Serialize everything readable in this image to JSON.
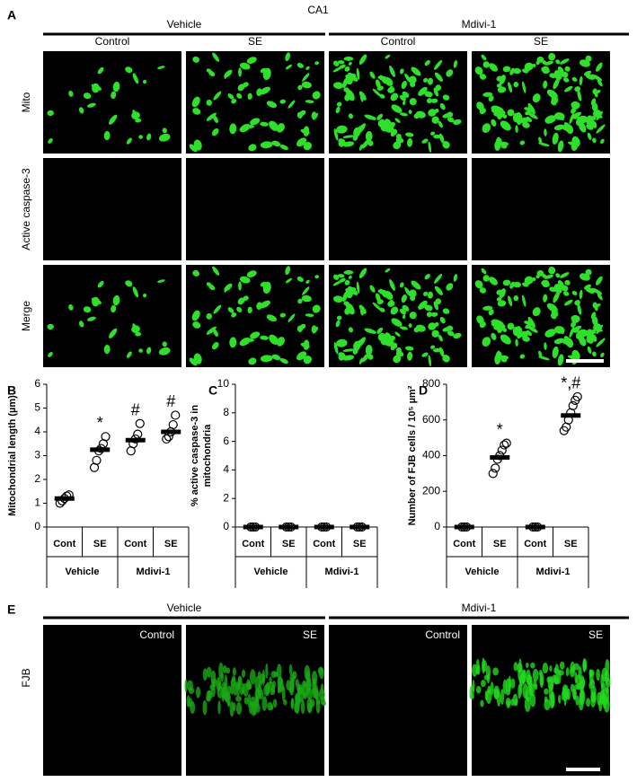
{
  "panel_a": {
    "label": "A",
    "title": "CA1",
    "groups": [
      "Vehicle",
      "Mdivi-1"
    ],
    "columns": [
      "Control",
      "SE",
      "Control",
      "SE"
    ],
    "rows": [
      "Mito",
      "Active caspase-3",
      "Merge"
    ]
  },
  "chart_data": [
    {
      "type": "dot",
      "label": "B",
      "y_label": [
        "Mitochondrial length (µm)"
      ],
      "categories": [
        "Cont",
        "SE",
        "Cont",
        "SE"
      ],
      "groups": [
        "Vehicle",
        "Mdivi-1"
      ],
      "values": [
        1.2,
        3.25,
        3.65,
        4.0
      ],
      "points": [
        [
          1.0,
          1.1,
          1.2,
          1.3,
          1.35
        ],
        [
          2.5,
          2.8,
          3.2,
          3.3,
          3.5,
          3.8
        ],
        [
          3.2,
          3.5,
          3.7,
          3.9,
          4.35
        ],
        [
          3.7,
          3.8,
          4.0,
          4.3,
          4.7
        ]
      ],
      "annotations": [
        null,
        "*",
        "#",
        "#"
      ],
      "ylim": [
        0,
        6
      ],
      "yticks": [
        0,
        1,
        2,
        3,
        4,
        5,
        6
      ]
    },
    {
      "type": "dot",
      "label": "C",
      "y_label": [
        "% active caspase-3 in",
        "mitochondria"
      ],
      "categories": [
        "Cont",
        "SE",
        "Cont",
        "SE"
      ],
      "groups": [
        "Vehicle",
        "Mdivi-1"
      ],
      "values": [
        0,
        0,
        0,
        0
      ],
      "points": [
        [
          0,
          0,
          0
        ],
        [
          0,
          0,
          0
        ],
        [
          0,
          0,
          0
        ],
        [
          0,
          0,
          0
        ]
      ],
      "annotations": [
        null,
        null,
        null,
        null
      ],
      "ylim": [
        0,
        10
      ],
      "yticks": [
        0,
        2,
        4,
        6,
        8,
        10
      ]
    },
    {
      "type": "dot",
      "label": "D",
      "y_label": [
        "Number of FJB cells / 10⁵ µm²"
      ],
      "categories": [
        "Cont",
        "SE",
        "Cont",
        "SE"
      ],
      "groups": [
        "Vehicle",
        "Mdivi-1"
      ],
      "values": [
        0,
        390,
        0,
        625
      ],
      "points": [
        [
          0,
          0,
          0
        ],
        [
          300,
          330,
          380,
          400,
          430,
          460,
          470
        ],
        [
          0,
          0,
          0
        ],
        [
          540,
          560,
          600,
          640,
          680,
          710,
          730
        ]
      ],
      "annotations": [
        null,
        "*",
        null,
        "*,#"
      ],
      "ylim": [
        0,
        800
      ],
      "yticks": [
        0,
        200,
        400,
        600,
        800
      ]
    }
  ],
  "panel_e": {
    "label": "E",
    "groups": [
      "Vehicle",
      "Mdivi-1"
    ],
    "row": "FJB",
    "insets": [
      "Control",
      "SE",
      "Control",
      "SE"
    ]
  }
}
